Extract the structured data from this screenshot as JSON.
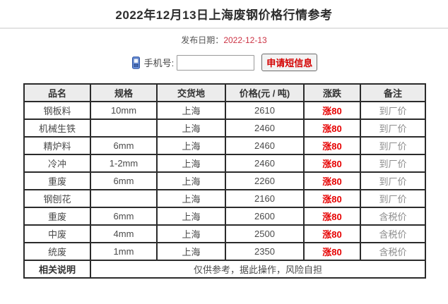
{
  "header": {
    "title": "2022年12月13日上海废钢价格行情参考",
    "publish_label": "发布日期：",
    "publish_date": "2022-12-13"
  },
  "sms_form": {
    "phone_icon": "mobile-phone-icon",
    "phone_label": "手机号:",
    "phone_value": "",
    "submit_label": "申请短信息"
  },
  "colors": {
    "date_red": "#cc3344",
    "rise_red": "#e60000",
    "button_red": "#d40000",
    "header_bg": "#ececec",
    "table_border": "#2b2b2b",
    "remark_gray": "#8c8c8c"
  },
  "table": {
    "headers": [
      "品名",
      "规格",
      "交货地",
      "价格(元 / 吨)",
      "涨跌",
      "备注"
    ],
    "rows": [
      [
        "钢板料",
        "10mm",
        "上海",
        "2610",
        "涨80",
        "到厂价"
      ],
      [
        "机械生铁",
        "",
        "上海",
        "2460",
        "涨80",
        "到厂价"
      ],
      [
        "精炉料",
        "6mm",
        "上海",
        "2460",
        "涨80",
        "到厂价"
      ],
      [
        "冷冲",
        "1-2mm",
        "上海",
        "2460",
        "涨80",
        "到厂价"
      ],
      [
        "重废",
        "6mm",
        "上海",
        "2260",
        "涨80",
        "到厂价"
      ],
      [
        "钢刨花",
        "",
        "上海",
        "2160",
        "涨80",
        "到厂价"
      ],
      [
        "重废",
        "6mm",
        "上海",
        "2600",
        "涨80",
        "含税价"
      ],
      [
        "中废",
        "4mm",
        "上海",
        "2500",
        "涨80",
        "含税价"
      ],
      [
        "统废",
        "1mm",
        "上海",
        "2350",
        "涨80",
        "含税价"
      ]
    ],
    "note_label": "相关说明",
    "note_text": "仅供参考，据此操作，风险自担"
  }
}
